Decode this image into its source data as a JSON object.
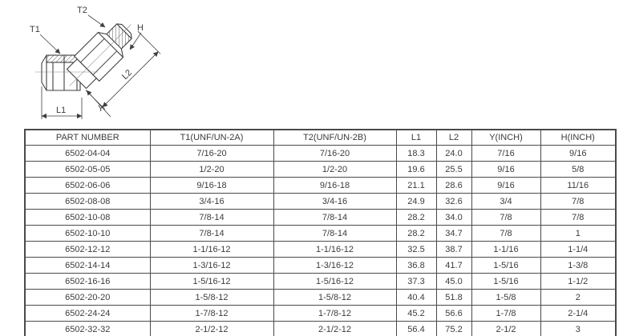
{
  "page": {
    "background": "#ffffff"
  },
  "diagram": {
    "description": "45-degree elbow tube fitting technical line drawing",
    "labels": {
      "t1": "T1",
      "t2": "T2",
      "h": "H",
      "y": "Y",
      "l1": "L1",
      "l2": "L2"
    }
  },
  "table": {
    "headers": [
      "PART NUMBER",
      "T1(UNF/UN-2A)",
      "T2(UNF/UN-2B)",
      "L1",
      "L2",
      "Y(INCH)",
      "H(INCH)"
    ],
    "rows": [
      [
        "6502-04-04",
        "7/16-20",
        "7/16-20",
        "18.3",
        "24.0",
        "7/16",
        "9/16"
      ],
      [
        "6502-05-05",
        "1/2-20",
        "1/2-20",
        "19.6",
        "25.5",
        "9/16",
        "5/8"
      ],
      [
        "6502-06-06",
        "9/16-18",
        "9/16-18",
        "21.1",
        "28.6",
        "9/16",
        "11/16"
      ],
      [
        "6502-08-08",
        "3/4-16",
        "3/4-16",
        "24.9",
        "32.6",
        "3/4",
        "7/8"
      ],
      [
        "6502-10-08",
        "7/8-14",
        "7/8-14",
        "28.2",
        "34.0",
        "7/8",
        "7/8"
      ],
      [
        "6502-10-10",
        "7/8-14",
        "7/8-14",
        "28.2",
        "34.7",
        "7/8",
        "1"
      ],
      [
        "6502-12-12",
        "1-1/16-12",
        "1-1/16-12",
        "32.5",
        "38.7",
        "1-1/16",
        "1-1/4"
      ],
      [
        "6502-14-14",
        "1-3/16-12",
        "1-3/16-12",
        "36.8",
        "41.7",
        "1-5/16",
        "1-3/8"
      ],
      [
        "6502-16-16",
        "1-5/16-12",
        "1-5/16-12",
        "37.3",
        "45.0",
        "1-5/16",
        "1-1/2"
      ],
      [
        "6502-20-20",
        "1-5/8-12",
        "1-5/8-12",
        "40.4",
        "51.8",
        "1-5/8",
        "2"
      ],
      [
        "6502-24-24",
        "1-7/8-12",
        "1-7/8-12",
        "45.2",
        "56.6",
        "1-7/8",
        "2-1/4"
      ],
      [
        "6502-32-32",
        "2-1/2-12",
        "2-1/2-12",
        "56.4",
        "75.2",
        "2-1/2",
        "3"
      ]
    ]
  },
  "colors": {
    "line": "#3f3f3f",
    "thin_line": "#8a8a8a",
    "table_border": "#4a4a4a",
    "text": "#3c3c3c"
  }
}
